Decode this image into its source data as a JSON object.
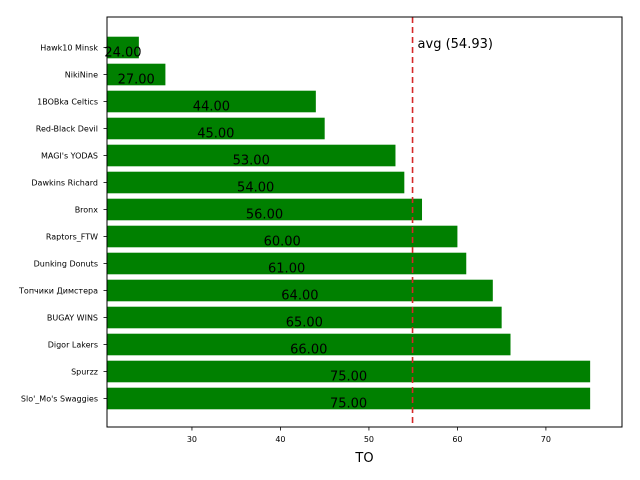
{
  "chart_data": {
    "type": "bar",
    "orientation": "horizontal",
    "categories": [
      "Hawk10 Minsk",
      "NikiNine",
      "1BOBka Celtics",
      "Red-Black Devil",
      "MAGI's YODAS",
      "Dawkins Richard",
      "Bronx",
      "Raptors_FTW",
      "Dunking Donuts",
      "Топчики Димстера",
      "BUGAY WINS",
      "Digor Lakers",
      "Spurzz",
      "Slo'_Mo's Swaggies"
    ],
    "values": [
      24,
      27,
      44,
      45,
      53,
      54,
      56,
      60,
      61,
      64,
      65,
      66,
      75,
      75
    ],
    "value_labels": [
      "24.00",
      "27.00",
      "44.00",
      "45.00",
      "53.00",
      "54.00",
      "56.00",
      "60.00",
      "61.00",
      "64.00",
      "65.00",
      "66.00",
      "75.00",
      "75.00"
    ],
    "title": "",
    "xlabel": "TO",
    "ylabel": "",
    "xlim": [
      20.4,
      78.6
    ],
    "xticks": [
      30,
      40,
      50,
      60,
      70
    ],
    "bar_color": "#008000",
    "average": {
      "value": 54.93,
      "label": "avg (54.93)",
      "color": "#d62728"
    }
  }
}
